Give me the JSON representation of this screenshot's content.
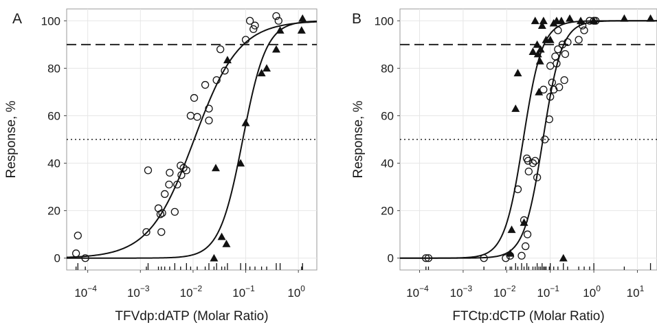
{
  "chart_data": [
    {
      "type": "scatter",
      "panel_label": "A",
      "xlabel": "TFVdp:dATP (Molar Ratio)",
      "ylabel": "Response, %",
      "xscale": "log",
      "xlim_log10": [
        -4.4,
        0.35
      ],
      "ylim": [
        -5,
        105
      ],
      "yticks": [
        0,
        20,
        40,
        60,
        80,
        100
      ],
      "ytick_labels": [
        "0",
        "20",
        "40",
        "60",
        "80",
        "100"
      ],
      "xticks_log10": [
        -4,
        -3,
        -2,
        -1,
        0
      ],
      "xtick_bases": [
        "10",
        "10",
        "10",
        "10",
        "10"
      ],
      "xtick_exponents": [
        "−4",
        "−3",
        "−2",
        "−1",
        "0"
      ],
      "grid": true,
      "reference_lines": [
        {
          "y": 90,
          "style": "dashed"
        },
        {
          "y": 50,
          "style": "dotted"
        }
      ],
      "series": [
        {
          "marker": "open-circle",
          "points": [
            {
              "x": 6e-05,
              "y": 2
            },
            {
              "x": 6.5e-05,
              "y": 9.5
            },
            {
              "x": 9e-05,
              "y": 0
            },
            {
              "x": 0.0013,
              "y": 11
            },
            {
              "x": 0.0014,
              "y": 37
            },
            {
              "x": 0.0022,
              "y": 21
            },
            {
              "x": 0.0024,
              "y": 18.5
            },
            {
              "x": 0.0025,
              "y": 11
            },
            {
              "x": 0.0026,
              "y": 19
            },
            {
              "x": 0.0029,
              "y": 27
            },
            {
              "x": 0.0035,
              "y": 31
            },
            {
              "x": 0.0036,
              "y": 36
            },
            {
              "x": 0.0045,
              "y": 19.5
            },
            {
              "x": 0.005,
              "y": 31
            },
            {
              "x": 0.006,
              "y": 35
            },
            {
              "x": 0.0058,
              "y": 39
            },
            {
              "x": 0.0066,
              "y": 38
            },
            {
              "x": 0.0075,
              "y": 37
            },
            {
              "x": 0.009,
              "y": 60
            },
            {
              "x": 0.0105,
              "y": 67.5
            },
            {
              "x": 0.012,
              "y": 59.5
            },
            {
              "x": 0.017,
              "y": 73
            },
            {
              "x": 0.02,
              "y": 63
            },
            {
              "x": 0.02,
              "y": 58
            },
            {
              "x": 0.028,
              "y": 75
            },
            {
              "x": 0.033,
              "y": 88
            },
            {
              "x": 0.04,
              "y": 79
            },
            {
              "x": 0.1,
              "y": 92
            },
            {
              "x": 0.12,
              "y": 100
            },
            {
              "x": 0.14,
              "y": 96.5
            },
            {
              "x": 0.15,
              "y": 98
            },
            {
              "x": 0.38,
              "y": 102
            },
            {
              "x": 0.42,
              "y": 100
            }
          ]
        },
        {
          "marker": "filled-triangle",
          "points": [
            {
              "x": 0.025,
              "y": 0
            },
            {
              "x": 0.027,
              "y": 38
            },
            {
              "x": 0.035,
              "y": 9
            },
            {
              "x": 0.043,
              "y": 6
            },
            {
              "x": 0.045,
              "y": 83.5
            },
            {
              "x": 0.08,
              "y": 40
            },
            {
              "x": 0.1,
              "y": 57
            },
            {
              "x": 0.2,
              "y": 78
            },
            {
              "x": 0.25,
              "y": 80
            },
            {
              "x": 0.38,
              "y": 88
            },
            {
              "x": 0.45,
              "y": 96
            },
            {
              "x": 1.15,
              "y": 96
            },
            {
              "x": 1.2,
              "y": 101
            }
          ]
        }
      ],
      "fitted_curves": [
        {
          "ec50": 0.0105,
          "hill": 1.02
        },
        {
          "ec50": 0.088,
          "hill": 1.95
        }
      ],
      "rug_ticks": [
        {
          "x": 6e-05,
          "long": false
        },
        {
          "x": 6.5e-05,
          "long": true
        },
        {
          "x": 9e-05,
          "long": false
        },
        {
          "x": 0.0013,
          "long": false
        },
        {
          "x": 0.0014,
          "long": true
        },
        {
          "x": 0.0022,
          "long": false
        },
        {
          "x": 0.0025,
          "long": false
        },
        {
          "x": 0.0029,
          "long": false
        },
        {
          "x": 0.0036,
          "long": false
        },
        {
          "x": 0.0045,
          "long": true
        },
        {
          "x": 0.0058,
          "long": false
        },
        {
          "x": 0.0075,
          "long": true
        },
        {
          "x": 0.009,
          "long": false
        },
        {
          "x": 0.012,
          "long": false
        },
        {
          "x": 0.017,
          "long": false
        },
        {
          "x": 0.02,
          "long": true
        },
        {
          "x": 0.025,
          "long": false
        },
        {
          "x": 0.028,
          "long": true
        },
        {
          "x": 0.035,
          "long": false
        },
        {
          "x": 0.04,
          "long": false
        },
        {
          "x": 0.045,
          "long": true
        },
        {
          "x": 0.08,
          "long": true
        },
        {
          "x": 0.1,
          "long": true
        },
        {
          "x": 0.12,
          "long": false
        },
        {
          "x": 0.15,
          "long": false
        },
        {
          "x": 0.2,
          "long": false
        },
        {
          "x": 0.25,
          "long": false
        },
        {
          "x": 0.38,
          "long": true
        },
        {
          "x": 0.45,
          "long": true
        },
        {
          "x": 1.15,
          "long": false
        },
        {
          "x": 1.2,
          "long": true
        }
      ]
    },
    {
      "type": "scatter",
      "panel_label": "B",
      "xlabel": "FTCtp:dCTP (Molar Ratio)",
      "ylabel": "Response, %",
      "xscale": "log",
      "xlim_log10": [
        -4.45,
        1.45
      ],
      "ylim": [
        -5,
        105
      ],
      "yticks": [
        0,
        20,
        40,
        60,
        80,
        100
      ],
      "ytick_labels": [
        "0",
        "20",
        "40",
        "60",
        "80",
        "100"
      ],
      "xticks_log10": [
        -4,
        -3,
        -2,
        -1,
        0,
        1
      ],
      "xtick_bases": [
        "10",
        "10",
        "10",
        "10",
        "10",
        "10"
      ],
      "xtick_exponents": [
        "−4",
        "−3",
        "−2",
        "−1",
        "0",
        "1"
      ],
      "grid": true,
      "reference_lines": [
        {
          "y": 90,
          "style": "dashed"
        },
        {
          "y": 50,
          "style": "dotted"
        }
      ],
      "series": [
        {
          "marker": "open-circle",
          "points": [
            {
              "x": 0.00014,
              "y": 0
            },
            {
              "x": 0.00016,
              "y": 0
            },
            {
              "x": 0.003,
              "y": 0
            },
            {
              "x": 0.0095,
              "y": 0
            },
            {
              "x": 0.012,
              "y": 1
            },
            {
              "x": 0.018,
              "y": 29
            },
            {
              "x": 0.022,
              "y": 1
            },
            {
              "x": 0.025,
              "y": 16
            },
            {
              "x": 0.027,
              "y": 5
            },
            {
              "x": 0.029,
              "y": 42
            },
            {
              "x": 0.03,
              "y": 10
            },
            {
              "x": 0.031,
              "y": 41
            },
            {
              "x": 0.032,
              "y": 36.5
            },
            {
              "x": 0.04,
              "y": 40
            },
            {
              "x": 0.045,
              "y": 41
            },
            {
              "x": 0.05,
              "y": 34
            },
            {
              "x": 0.07,
              "y": 71
            },
            {
              "x": 0.075,
              "y": 50
            },
            {
              "x": 0.095,
              "y": 58.5
            },
            {
              "x": 0.1,
              "y": 81
            },
            {
              "x": 0.1,
              "y": 68
            },
            {
              "x": 0.11,
              "y": 74
            },
            {
              "x": 0.12,
              "y": 71
            },
            {
              "x": 0.13,
              "y": 85
            },
            {
              "x": 0.14,
              "y": 82
            },
            {
              "x": 0.15,
              "y": 88
            },
            {
              "x": 0.15,
              "y": 96
            },
            {
              "x": 0.16,
              "y": 72
            },
            {
              "x": 0.19,
              "y": 90
            },
            {
              "x": 0.21,
              "y": 75
            },
            {
              "x": 0.22,
              "y": 86
            },
            {
              "x": 0.25,
              "y": 91
            },
            {
              "x": 0.45,
              "y": 92
            },
            {
              "x": 0.55,
              "y": 98
            },
            {
              "x": 0.6,
              "y": 96
            },
            {
              "x": 0.8,
              "y": 100
            },
            {
              "x": 1.0,
              "y": 100
            },
            {
              "x": 1.1,
              "y": 100
            }
          ]
        },
        {
          "marker": "filled-triangle",
          "points": [
            {
              "x": 0.012,
              "y": 2
            },
            {
              "x": 0.013,
              "y": 12
            },
            {
              "x": 0.016,
              "y": 63
            },
            {
              "x": 0.018,
              "y": 78
            },
            {
              "x": 0.025,
              "y": 15
            },
            {
              "x": 0.04,
              "y": 87
            },
            {
              "x": 0.045,
              "y": 100
            },
            {
              "x": 0.05,
              "y": 90
            },
            {
              "x": 0.052,
              "y": 86
            },
            {
              "x": 0.055,
              "y": 70
            },
            {
              "x": 0.058,
              "y": 83
            },
            {
              "x": 0.06,
              "y": 88
            },
            {
              "x": 0.065,
              "y": 98
            },
            {
              "x": 0.07,
              "y": 100
            },
            {
              "x": 0.08,
              "y": 92
            },
            {
              "x": 0.1,
              "y": 92
            },
            {
              "x": 0.12,
              "y": 99
            },
            {
              "x": 0.14,
              "y": 100
            },
            {
              "x": 0.18,
              "y": 100
            },
            {
              "x": 0.2,
              "y": 0
            },
            {
              "x": 0.28,
              "y": 101
            },
            {
              "x": 0.5,
              "y": 100
            },
            {
              "x": 1.0,
              "y": 100
            },
            {
              "x": 5.0,
              "y": 101
            },
            {
              "x": 20.0,
              "y": 101
            }
          ]
        }
      ],
      "fitted_curves": [
        {
          "ec50": 0.068,
          "hill": 2.0
        },
        {
          "ec50": 0.024,
          "hill": 2.0
        }
      ],
      "rug_ticks": [
        {
          "x": 0.00014,
          "long": false
        },
        {
          "x": 0.00016,
          "long": false
        },
        {
          "x": 0.003,
          "long": false
        },
        {
          "x": 0.0095,
          "long": false
        },
        {
          "x": 0.012,
          "long": false
        },
        {
          "x": 0.013,
          "long": false
        },
        {
          "x": 0.016,
          "long": true
        },
        {
          "x": 0.018,
          "long": false
        },
        {
          "x": 0.022,
          "long": true
        },
        {
          "x": 0.025,
          "long": false
        },
        {
          "x": 0.029,
          "long": true
        },
        {
          "x": 0.032,
          "long": false
        },
        {
          "x": 0.04,
          "long": false
        },
        {
          "x": 0.045,
          "long": false
        },
        {
          "x": 0.05,
          "long": true
        },
        {
          "x": 0.055,
          "long": false
        },
        {
          "x": 0.06,
          "long": false
        },
        {
          "x": 0.065,
          "long": true
        },
        {
          "x": 0.07,
          "long": false
        },
        {
          "x": 0.075,
          "long": false
        },
        {
          "x": 0.08,
          "long": false
        },
        {
          "x": 0.095,
          "long": false
        },
        {
          "x": 0.1,
          "long": true
        },
        {
          "x": 0.12,
          "long": false
        },
        {
          "x": 0.15,
          "long": false
        },
        {
          "x": 0.2,
          "long": true
        },
        {
          "x": 0.25,
          "long": false
        },
        {
          "x": 0.45,
          "long": false
        },
        {
          "x": 0.6,
          "long": false
        },
        {
          "x": 0.8,
          "long": false
        },
        {
          "x": 1.0,
          "long": true
        },
        {
          "x": 5.0,
          "long": false
        },
        {
          "x": 20.0,
          "long": true
        }
      ]
    }
  ]
}
